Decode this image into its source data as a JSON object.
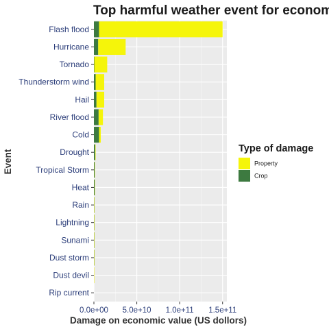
{
  "chart_data": {
    "type": "bar",
    "orientation": "horizontal",
    "stacked": true,
    "title": "Top harmful weather event for economy",
    "xlabel": "Damage on economic value (US dollors)",
    "ylabel": "Event",
    "categories": [
      "Flash flood",
      "Hurricane",
      "Tornado",
      "Thunderstorm wind",
      "Hail",
      "River flood",
      "Cold",
      "Drought",
      "Tropical Storm",
      "Heat",
      "Rain",
      "Lightning",
      "Sunami",
      "Dust storm",
      "Dust devil",
      "Rip current"
    ],
    "series": [
      {
        "name": "Property",
        "color": "#f5f50a",
        "values": [
          144000000000,
          32000000000,
          15000000000,
          10000000000,
          9000000000,
          5000000000,
          2000000000,
          500000000,
          400000000,
          200000000,
          20000000,
          10000000,
          5000000,
          3000000,
          1000000,
          0
        ]
      },
      {
        "name": "Crop",
        "color": "#3d7a40",
        "values": [
          6000000000,
          5000000000,
          500000000,
          2000000000,
          3000000000,
          5500000000,
          6000000000,
          1500000000,
          800000000,
          900000000,
          30000000,
          5000000,
          1000000,
          1000000,
          0,
          0
        ]
      }
    ],
    "xlim": [
      0,
      155000000000
    ],
    "xticks": [
      {
        "value": 0,
        "label": "0.0e+00"
      },
      {
        "value": 50000000000,
        "label": "5.0e+10"
      },
      {
        "value": 100000000000,
        "label": "1.0e+11"
      },
      {
        "value": 150000000000,
        "label": "1.5e+11"
      }
    ],
    "grid": true,
    "panel_background": "#ebebeb",
    "legend": {
      "title": "Type of damage",
      "position": "right",
      "entries": [
        "Property",
        "Crop"
      ]
    }
  }
}
